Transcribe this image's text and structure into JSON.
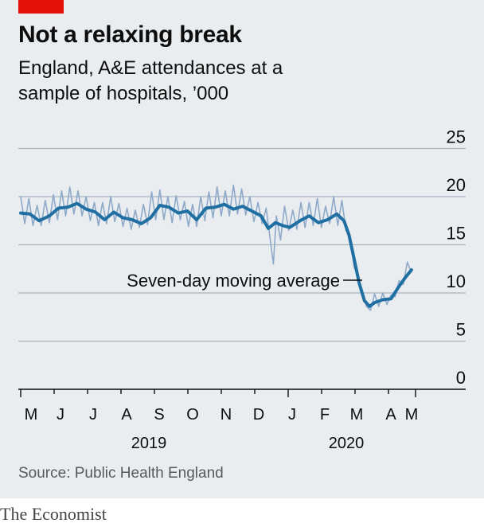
{
  "header": {
    "title": "Not a relaxing break",
    "subtitle": "England, A&E attendances at a sample of hospitals, ’000"
  },
  "footer": {
    "source": "Source: Public Health England",
    "brand": "The Economist"
  },
  "colors": {
    "accent": "#e3120b",
    "background": "#e9edf0",
    "moving_average": "#1f6fa3",
    "daily": "#8fa9c9",
    "grid": "#a8b4be"
  },
  "chart_data": {
    "type": "line",
    "x_range": [
      "2019-04-22",
      "2020-05-12"
    ],
    "ylim": [
      0,
      25
    ],
    "yticks": [
      0,
      5,
      10,
      15,
      20,
      25
    ],
    "grid": true,
    "x_tick_labels": [
      "M",
      "J",
      "J",
      "A",
      "S",
      "O",
      "N",
      "D",
      "J",
      "F",
      "M",
      "A",
      "M"
    ],
    "x_group_labels": [
      "2019",
      "2020"
    ],
    "annotation": "Seven-day moving average",
    "series": [
      {
        "role": "moving-average",
        "x": [
          "2019-04-22",
          "2019-05-01",
          "2019-05-10",
          "2019-05-20",
          "2019-05-29",
          "2019-06-07",
          "2019-06-16",
          "2019-06-25",
          "2019-07-04",
          "2019-07-13",
          "2019-07-22",
          "2019-07-31",
          "2019-08-09",
          "2019-08-18",
          "2019-08-27",
          "2019-09-05",
          "2019-09-14",
          "2019-09-23",
          "2019-10-02",
          "2019-10-11",
          "2019-10-20",
          "2019-10-29",
          "2019-11-07",
          "2019-11-16",
          "2019-11-25",
          "2019-12-04",
          "2019-12-13",
          "2019-12-20",
          "2019-12-27",
          "2020-01-03",
          "2020-01-10",
          "2020-01-20",
          "2020-01-29",
          "2020-02-07",
          "2020-02-16",
          "2020-02-25",
          "2020-03-03",
          "2020-03-08",
          "2020-03-13",
          "2020-03-18",
          "2020-03-23",
          "2020-03-28",
          "2020-04-02",
          "2020-04-10",
          "2020-04-18",
          "2020-04-26",
          "2020-05-02",
          "2020-05-08"
        ],
        "y": [
          18.3,
          18.2,
          17.5,
          18.0,
          18.8,
          18.9,
          19.3,
          18.7,
          18.4,
          17.6,
          18.4,
          17.8,
          17.6,
          17.2,
          17.8,
          19.1,
          18.9,
          18.3,
          18.5,
          17.6,
          18.8,
          18.9,
          19.2,
          18.7,
          19.0,
          18.5,
          18.0,
          16.7,
          17.3,
          17.0,
          16.8,
          17.5,
          18.0,
          17.3,
          17.6,
          18.2,
          17.5,
          16.0,
          13.5,
          11.0,
          9.2,
          8.6,
          9.0,
          9.3,
          9.4,
          10.7,
          11.6,
          12.4
        ]
      },
      {
        "role": "daily",
        "x": [
          "2019-04-22",
          "2019-04-26",
          "2019-04-30",
          "2019-05-04",
          "2019-05-08",
          "2019-05-12",
          "2019-05-16",
          "2019-05-20",
          "2019-05-24",
          "2019-05-28",
          "2019-06-01",
          "2019-06-05",
          "2019-06-09",
          "2019-06-13",
          "2019-06-17",
          "2019-06-21",
          "2019-06-25",
          "2019-06-29",
          "2019-07-03",
          "2019-07-07",
          "2019-07-11",
          "2019-07-15",
          "2019-07-19",
          "2019-07-23",
          "2019-07-27",
          "2019-07-31",
          "2019-08-04",
          "2019-08-08",
          "2019-08-12",
          "2019-08-16",
          "2019-08-20",
          "2019-08-24",
          "2019-08-28",
          "2019-09-01",
          "2019-09-05",
          "2019-09-09",
          "2019-09-13",
          "2019-09-17",
          "2019-09-21",
          "2019-09-25",
          "2019-09-29",
          "2019-10-03",
          "2019-10-07",
          "2019-10-11",
          "2019-10-15",
          "2019-10-19",
          "2019-10-23",
          "2019-10-27",
          "2019-10-31",
          "2019-11-04",
          "2019-11-08",
          "2019-11-12",
          "2019-11-16",
          "2019-11-20",
          "2019-11-24",
          "2019-11-28",
          "2019-12-02",
          "2019-12-06",
          "2019-12-10",
          "2019-12-14",
          "2019-12-18",
          "2019-12-22",
          "2019-12-25",
          "2019-12-28",
          "2020-01-01",
          "2020-01-05",
          "2020-01-09",
          "2020-01-13",
          "2020-01-17",
          "2020-01-21",
          "2020-01-25",
          "2020-01-29",
          "2020-02-02",
          "2020-02-06",
          "2020-02-10",
          "2020-02-14",
          "2020-02-18",
          "2020-02-22",
          "2020-02-26",
          "2020-03-01",
          "2020-03-05",
          "2020-03-09",
          "2020-03-13",
          "2020-03-17",
          "2020-03-21",
          "2020-03-25",
          "2020-03-29",
          "2020-04-02",
          "2020-04-06",
          "2020-04-10",
          "2020-04-14",
          "2020-04-18",
          "2020-04-22",
          "2020-04-26",
          "2020-04-30",
          "2020-05-04",
          "2020-05-08"
        ],
        "y": [
          20.0,
          17.2,
          19.8,
          17.0,
          19.1,
          17.0,
          19.6,
          17.3,
          20.2,
          17.6,
          20.6,
          18.0,
          21.0,
          18.2,
          20.6,
          18.0,
          20.0,
          17.5,
          19.4,
          17.0,
          19.4,
          17.2,
          20.0,
          17.4,
          19.3,
          16.9,
          18.8,
          16.6,
          18.6,
          16.8,
          19.2,
          17.1,
          20.5,
          17.6,
          20.7,
          17.6,
          20.0,
          17.3,
          20.1,
          17.6,
          19.5,
          16.9,
          19.2,
          16.9,
          20.0,
          17.5,
          20.5,
          17.8,
          21.0,
          18.0,
          20.6,
          18.0,
          21.2,
          18.2,
          20.8,
          18.1,
          20.0,
          17.4,
          19.4,
          17.2,
          18.8,
          15.5,
          13.0,
          18.0,
          15.5,
          19.0,
          16.5,
          18.6,
          16.6,
          19.4,
          16.8,
          19.4,
          17.0,
          19.8,
          16.8,
          19.0,
          17.2,
          20.0,
          17.0,
          19.6,
          16.5,
          15.8,
          12.6,
          11.9,
          10.0,
          8.6,
          8.2,
          9.9,
          8.6,
          10.0,
          8.8,
          9.8,
          9.6,
          11.3,
          10.9,
          13.2,
          12.1
        ]
      }
    ]
  }
}
